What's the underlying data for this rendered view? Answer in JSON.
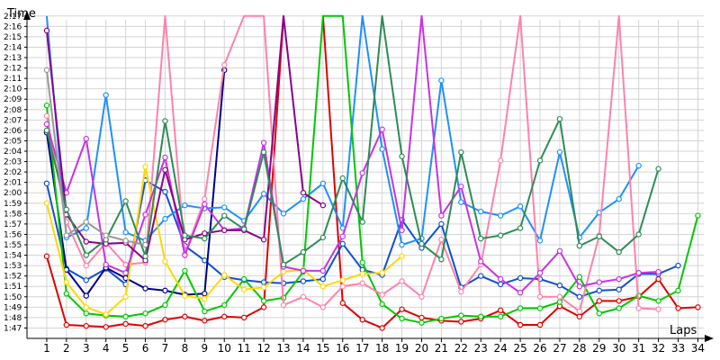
{
  "chart_data": {
    "type": "line",
    "ylabel": "Time",
    "xlabel": "Laps",
    "x": [
      1,
      2,
      3,
      4,
      5,
      6,
      7,
      8,
      9,
      10,
      11,
      12,
      13,
      14,
      15,
      16,
      17,
      18,
      19,
      20,
      21,
      22,
      23,
      24,
      25,
      26,
      27,
      28,
      29,
      30,
      31,
      32,
      33,
      34
    ],
    "x_tick_labels": [
      "1",
      "2",
      "3",
      "4",
      "5",
      "6",
      "7",
      "8",
      "9",
      "10",
      "11",
      "12",
      "13",
      "14",
      "15",
      "16",
      "17",
      "18",
      "19",
      "20",
      "21",
      "22",
      "23",
      "24",
      "25",
      "26",
      "27",
      "28",
      "29",
      "30",
      "31",
      "32",
      "33",
      "34"
    ],
    "y_tick_labels": [
      "1:47",
      "1:48",
      "1:49",
      "1:50",
      "1:51",
      "1:52",
      "1:53",
      "1:54",
      "1:55",
      "1:56",
      "1:57",
      "1:58",
      "1:59",
      "2:00",
      "2:01",
      "2:02",
      "2:03",
      "2:04",
      "2:05",
      "2:06",
      "2:07",
      "2:08",
      "2:09",
      "2:10",
      "2:11",
      "2:12",
      "2:13",
      "2:14",
      "2:15",
      "2:16",
      "2:17"
    ],
    "ylim": [
      106,
      137.5
    ],
    "xlim": [
      0,
      34.3
    ],
    "grid": true,
    "series": [
      {
        "color": "#e00000",
        "values": [
          113.9,
          107.3,
          107.2,
          107.1,
          107.4,
          107.2,
          107.8,
          108.1,
          107.7,
          108.1,
          108.0,
          109.0,
          137.0,
          null,
          137.0,
          109.4,
          107.8,
          107.0,
          108.8,
          108.0,
          107.7,
          107.6,
          107.9,
          108.7,
          107.3,
          107.3,
          109.1,
          108.1,
          109.6,
          109.6,
          110.0,
          111.7,
          108.9,
          109.0
        ]
      },
      {
        "color": "#1050d0",
        "values": [
          120.9,
          112.7,
          111.6,
          112.7,
          111.2,
          121.2,
          120.1,
          114.9,
          113.5,
          111.9,
          111.6,
          111.4,
          111.3,
          111.5,
          111.7,
          115.1,
          112.6,
          112.1,
          117.4,
          114.7,
          117.0,
          110.9,
          112.0,
          111.2,
          111.8,
          111.7,
          111.1,
          110.0,
          110.6,
          110.7,
          112.2,
          112.2,
          113.0,
          null
        ]
      },
      {
        "color": "#00008b",
        "values": [
          125.8,
          112.6,
          110.1,
          112.8,
          111.8,
          110.8,
          110.6,
          110.2,
          110.3,
          131.8,
          null,
          null,
          null,
          null,
          null,
          null,
          null,
          null,
          null,
          null,
          null,
          null,
          null,
          null,
          null,
          null,
          null,
          null,
          null,
          null,
          null,
          null,
          null,
          null
        ]
      },
      {
        "color": "#1e90ff",
        "values": [
          137.0,
          115.7,
          116.6,
          129.4,
          116.2,
          115.4,
          117.5,
          118.8,
          118.5,
          118.6,
          117.3,
          119.9,
          118.0,
          119.4,
          120.9,
          116.6,
          137.0,
          124.2,
          115.0,
          115.6,
          130.8,
          119.1,
          118.2,
          117.8,
          118.7,
          115.4,
          123.9,
          115.7,
          118.1,
          119.4,
          122.6,
          null,
          null,
          null
        ]
      },
      {
        "color": "#00c800",
        "values": [
          128.4,
          110.3,
          108.4,
          108.2,
          108.1,
          108.4,
          109.2,
          112.5,
          108.6,
          109.2,
          111.7,
          109.6,
          109.9,
          112.4,
          137.0,
          137.0,
          113.3,
          109.3,
          107.9,
          107.5,
          107.9,
          108.2,
          108.1,
          108.1,
          108.9,
          108.9,
          109.5,
          111.9,
          108.4,
          108.9,
          110.1,
          109.6,
          110.6,
          117.8
        ]
      },
      {
        "color": "#ff82ab",
        "values": [
          127.4,
          117.2,
          113.0,
          115.2,
          113.1,
          113.3,
          137.0,
          114.1,
          119.4,
          132.3,
          137.0,
          137.0,
          109.2,
          110.0,
          109.0,
          111.0,
          111.3,
          110.2,
          111.5,
          110.0,
          115.5,
          110.5,
          113.1,
          123.1,
          137.0,
          110.0,
          110.0,
          108.6,
          115.9,
          137.0,
          108.9,
          108.8,
          null,
          null
        ]
      },
      {
        "color": "#ffd700",
        "values": [
          119.0,
          111.4,
          109.0,
          108.3,
          110.0,
          122.5,
          113.4,
          110.1,
          109.8,
          112.1,
          110.7,
          110.9,
          112.4,
          112.6,
          111.0,
          111.6,
          112.2,
          112.3,
          113.9,
          null,
          null,
          null,
          null,
          null,
          null,
          null,
          null,
          null,
          null,
          null,
          null,
          null,
          null,
          null
        ]
      },
      {
        "color": "#c832e6",
        "values": [
          126.6,
          120.0,
          125.2,
          113.1,
          112.3,
          117.9,
          123.4,
          114.0,
          118.9,
          116.4,
          116.6,
          124.8,
          112.9,
          112.5,
          112.5,
          115.8,
          121.9,
          126.1,
          116.4,
          137.0,
          117.8,
          120.6,
          113.4,
          111.7,
          110.4,
          112.3,
          114.4,
          111.0,
          111.4,
          111.7,
          112.3,
          112.4,
          null,
          null
        ]
      },
      {
        "color": "#8b008b",
        "values": [
          135.6,
          117.9,
          115.3,
          115.1,
          115.2,
          113.5,
          122.2,
          115.5,
          116.1,
          116.4,
          116.4,
          115.5,
          137.0,
          120.0,
          118.8,
          null,
          null,
          null,
          null,
          null,
          null,
          null,
          null,
          null,
          null,
          null,
          null,
          null,
          null,
          null,
          null,
          null,
          null,
          null
        ]
      },
      {
        "color": "#2e8b57",
        "values": [
          126.0,
          118.4,
          114.0,
          115.5,
          119.2,
          113.9,
          126.9,
          115.9,
          115.6,
          117.8,
          116.5,
          123.9,
          113.1,
          114.3,
          115.7,
          121.4,
          117.2,
          137.0,
          123.5,
          115.1,
          113.6,
          123.9,
          115.6,
          115.9,
          116.6,
          123.1,
          127.1,
          114.9,
          115.8,
          114.3,
          116.0,
          122.3,
          null,
          null
        ]
      },
      {
        "color": "#999999",
        "values": [
          131.8,
          115.9,
          117.2,
          115.9,
          115.4,
          115.0,
          null,
          null,
          null,
          null,
          null,
          null,
          null,
          null,
          null,
          null,
          null,
          null,
          null,
          null,
          null,
          null,
          null,
          null,
          null,
          null,
          null,
          null,
          null,
          null,
          null,
          null,
          null,
          null
        ]
      }
    ]
  }
}
